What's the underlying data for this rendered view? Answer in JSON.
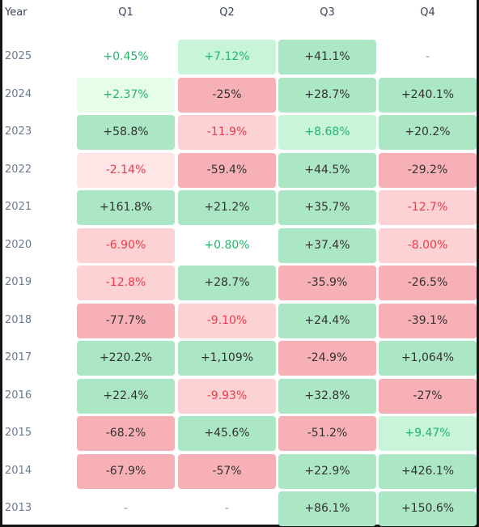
{
  "header": {
    "year_label": "Year",
    "quarters": [
      "Q1",
      "Q2",
      "Q3",
      "Q4"
    ]
  },
  "colors": {
    "positive_strong": "#abe6c5",
    "positive_mid": "#c8f5d9",
    "positive_light": "#e6fde9",
    "negative_strong": "#f7b0b5",
    "negative_mid": "#fdd2d5",
    "negative_light": "#ffe5e6",
    "positive_text": "#22b66b",
    "negative_text": "#f0394a"
  },
  "chart_data": {
    "type": "table",
    "columns": [
      "Year",
      "Q1",
      "Q2",
      "Q3",
      "Q4"
    ],
    "rows": [
      {
        "year": "2025",
        "cells": [
          {
            "text": "+0.45%",
            "tone": "g-text"
          },
          {
            "text": "+7.12%",
            "tone": "g-mid"
          },
          {
            "text": "+41.1%",
            "tone": "g-strong"
          },
          {
            "text": "-",
            "tone": "dash"
          }
        ]
      },
      {
        "year": "2024",
        "cells": [
          {
            "text": "+2.37%",
            "tone": "g-light"
          },
          {
            "text": "-25%",
            "tone": "r-strong"
          },
          {
            "text": "+28.7%",
            "tone": "g-strong"
          },
          {
            "text": "+240.1%",
            "tone": "g-strong"
          }
        ]
      },
      {
        "year": "2023",
        "cells": [
          {
            "text": "+58.8%",
            "tone": "g-strong"
          },
          {
            "text": "-11.9%",
            "tone": "r-mid"
          },
          {
            "text": "+8.68%",
            "tone": "g-mid"
          },
          {
            "text": "+20.2%",
            "tone": "g-strong"
          }
        ]
      },
      {
        "year": "2022",
        "cells": [
          {
            "text": "-2.14%",
            "tone": "r-light"
          },
          {
            "text": "-59.4%",
            "tone": "r-strong"
          },
          {
            "text": "+44.5%",
            "tone": "g-strong"
          },
          {
            "text": "-29.2%",
            "tone": "r-strong"
          }
        ]
      },
      {
        "year": "2021",
        "cells": [
          {
            "text": "+161.8%",
            "tone": "g-strong"
          },
          {
            "text": "+21.2%",
            "tone": "g-strong"
          },
          {
            "text": "+35.7%",
            "tone": "g-strong"
          },
          {
            "text": "-12.7%",
            "tone": "r-mid"
          }
        ]
      },
      {
        "year": "2020",
        "cells": [
          {
            "text": "-6.90%",
            "tone": "r-mid"
          },
          {
            "text": "+0.80%",
            "tone": "g-text"
          },
          {
            "text": "+37.4%",
            "tone": "g-strong"
          },
          {
            "text": "-8.00%",
            "tone": "r-mid"
          }
        ]
      },
      {
        "year": "2019",
        "cells": [
          {
            "text": "-12.8%",
            "tone": "r-mid"
          },
          {
            "text": "+28.7%",
            "tone": "g-strong"
          },
          {
            "text": "-35.9%",
            "tone": "r-strong"
          },
          {
            "text": "-26.5%",
            "tone": "r-strong"
          }
        ]
      },
      {
        "year": "2018",
        "cells": [
          {
            "text": "-77.7%",
            "tone": "r-strong"
          },
          {
            "text": "-9.10%",
            "tone": "r-mid"
          },
          {
            "text": "+24.4%",
            "tone": "g-strong"
          },
          {
            "text": "-39.1%",
            "tone": "r-strong"
          }
        ]
      },
      {
        "year": "2017",
        "cells": [
          {
            "text": "+220.2%",
            "tone": "g-strong"
          },
          {
            "text": "+1,109%",
            "tone": "g-strong"
          },
          {
            "text": "-24.9%",
            "tone": "r-strong"
          },
          {
            "text": "+1,064%",
            "tone": "g-strong"
          }
        ]
      },
      {
        "year": "2016",
        "cells": [
          {
            "text": "+22.4%",
            "tone": "g-strong"
          },
          {
            "text": "-9.93%",
            "tone": "r-mid"
          },
          {
            "text": "+32.8%",
            "tone": "g-strong"
          },
          {
            "text": "-27%",
            "tone": "r-strong"
          }
        ]
      },
      {
        "year": "2015",
        "cells": [
          {
            "text": "-68.2%",
            "tone": "r-strong"
          },
          {
            "text": "+45.6%",
            "tone": "g-strong"
          },
          {
            "text": "-51.2%",
            "tone": "r-strong"
          },
          {
            "text": "+9.47%",
            "tone": "g-mid"
          }
        ]
      },
      {
        "year": "2014",
        "cells": [
          {
            "text": "-67.9%",
            "tone": "r-strong"
          },
          {
            "text": "-57%",
            "tone": "r-strong"
          },
          {
            "text": "+22.9%",
            "tone": "g-strong"
          },
          {
            "text": "+426.1%",
            "tone": "g-strong"
          }
        ]
      },
      {
        "year": "2013",
        "cells": [
          {
            "text": "-",
            "tone": "dash"
          },
          {
            "text": "-",
            "tone": "dash"
          },
          {
            "text": "+86.1%",
            "tone": "g-strong"
          },
          {
            "text": "+150.6%",
            "tone": "g-strong"
          }
        ]
      }
    ]
  }
}
